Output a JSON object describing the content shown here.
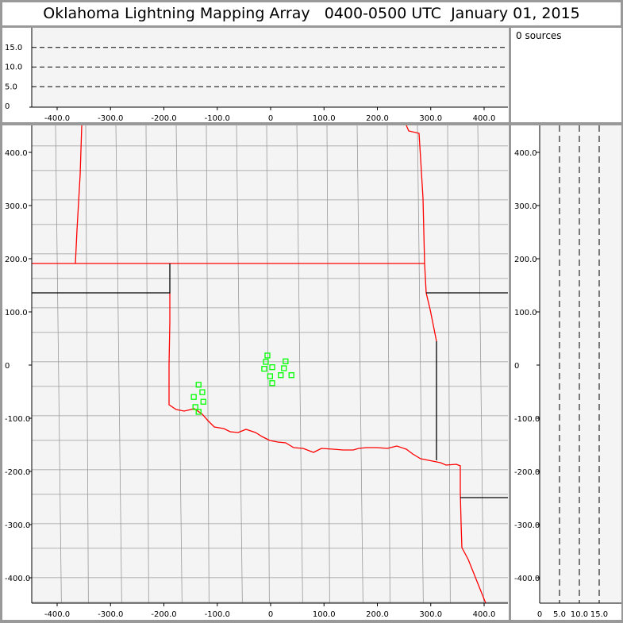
{
  "title": "Oklahoma Lightning Mapping Array   0400-0500 UTC  January 01, 2015",
  "source_count_label": "0 sources",
  "colors": {
    "border_state": "#ff0000",
    "county": "#999999",
    "station": "#00ff00",
    "plot_bg": "#f4f4f4",
    "frame": "#999999"
  },
  "chart_data": [
    {
      "type": "scatter",
      "panel": "plan-view",
      "xlim": [
        -448,
        445
      ],
      "ylim": [
        -448,
        450
      ],
      "x_ticks": [
        "-400.0",
        "-300.0",
        "-200.0",
        "-100.0",
        "0",
        "100.0",
        "200.0",
        "300.0",
        "400.0"
      ],
      "y_ticks": [
        "-400.0",
        "-300.0",
        "-200.0",
        "-100.0",
        "0",
        "100.0",
        "200.0",
        "300.0",
        "400.0"
      ],
      "series": [
        {
          "marker": "open-square",
          "color": "#00ff00",
          "points": [
            [
              -6,
              18
            ],
            [
              -9,
              6
            ],
            [
              28,
              7
            ],
            [
              -12,
              -7
            ],
            [
              3,
              -4
            ],
            [
              25,
              -6
            ],
            [
              -1,
              -21
            ],
            [
              19,
              -19
            ],
            [
              39,
              -19
            ],
            [
              3,
              -34
            ],
            [
              -135,
              -37
            ],
            [
              -128,
              -51
            ],
            [
              -144,
              -60
            ],
            [
              -126,
              -69
            ],
            [
              -141,
              -79
            ],
            [
              -135,
              -88
            ]
          ]
        }
      ]
    },
    {
      "type": "scatter",
      "panel": "east-west-vs-altitude",
      "xlim": [
        -448,
        445
      ],
      "ylim": [
        0,
        19.5
      ],
      "x_ticks": [
        "-400.0",
        "-300.0",
        "-200.0",
        "-100.0",
        "0",
        "100.0",
        "200.0",
        "300.0",
        "400.0"
      ],
      "y_ticks": [
        "0",
        "5.0",
        "10.0",
        "15.0"
      ],
      "grid": "dashed at 5, 10, 15",
      "series": []
    },
    {
      "type": "scatter",
      "panel": "altitude-vs-north-south",
      "xlim": [
        0,
        19.5
      ],
      "ylim": [
        -448,
        450
      ],
      "x_ticks": [
        "0",
        "5.0",
        "10.0",
        "15.0"
      ],
      "y_ticks": [
        "-400.0",
        "-300.0",
        "-200.0",
        "-100.0",
        "0",
        "100.0",
        "200.0",
        "300.0",
        "400.0"
      ],
      "grid": "dashed at 5, 10, 15",
      "series": []
    }
  ]
}
